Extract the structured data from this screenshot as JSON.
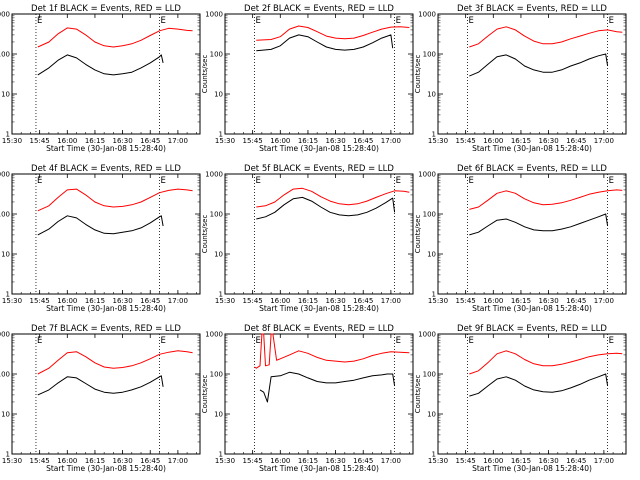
{
  "figure": {
    "xlabel": "Start Time (30-Jan-08 15:28:40)",
    "ylabel": "Counts/sec"
  },
  "axis": {
    "x_ticks": [
      {
        "minutes": 0,
        "label": "15:30"
      },
      {
        "minutes": 15,
        "label": "15:45"
      },
      {
        "minutes": 30,
        "label": "16:00"
      },
      {
        "minutes": 45,
        "label": "16:15"
      },
      {
        "minutes": 60,
        "label": "16:30"
      },
      {
        "minutes": 75,
        "label": "16:45"
      },
      {
        "minutes": 90,
        "label": "17:00"
      }
    ],
    "y_ticks": [
      {
        "value": 1,
        "label": "1"
      },
      {
        "value": 10,
        "label": "10"
      },
      {
        "value": 100,
        "label": "100"
      },
      {
        "value": 1000,
        "label": "1000"
      }
    ],
    "xlim_minutes_after_1530": [
      0,
      102
    ],
    "ylim": [
      1,
      1000
    ],
    "yscale": "log"
  },
  "colors": {
    "events": "#000000",
    "lld": "#ff0000",
    "marker": "#000000"
  },
  "chart_data": [
    {
      "type": "line",
      "title": "Det 1f BLACK = Events, RED = LLD",
      "markers": [
        {
          "label": "E",
          "minutes": 13
        },
        {
          "label": "E",
          "minutes": 80
        }
      ],
      "series": [
        {
          "name": "BLACK",
          "x": [
            14,
            20,
            25,
            30,
            35,
            40,
            45,
            50,
            55,
            60,
            65,
            70,
            75,
            80,
            81,
            82
          ],
          "y": [
            30,
            45,
            70,
            95,
            80,
            55,
            40,
            32,
            30,
            32,
            35,
            45,
            60,
            85,
            95,
            60
          ]
        },
        {
          "name": "RED",
          "x": [
            14,
            20,
            25,
            30,
            35,
            40,
            45,
            50,
            55,
            60,
            65,
            70,
            75,
            80,
            85,
            90,
            95,
            98
          ],
          "y": [
            150,
            200,
            320,
            450,
            420,
            300,
            200,
            160,
            150,
            160,
            180,
            220,
            290,
            380,
            440,
            420,
            390,
            380
          ]
        }
      ]
    },
    {
      "type": "line",
      "title": "Det 2f BLACK = Events, RED = LLD",
      "markers": [
        {
          "label": "E",
          "minutes": 16
        },
        {
          "label": "E",
          "minutes": 92
        }
      ],
      "series": [
        {
          "name": "BLACK",
          "x": [
            17,
            25,
            30,
            35,
            40,
            45,
            50,
            55,
            60,
            65,
            70,
            75,
            80,
            85,
            90,
            91
          ],
          "y": [
            120,
            130,
            160,
            250,
            300,
            270,
            200,
            150,
            130,
            125,
            130,
            150,
            190,
            250,
            300,
            140
          ]
        },
        {
          "name": "RED",
          "x": [
            17,
            25,
            30,
            35,
            40,
            45,
            50,
            55,
            60,
            65,
            70,
            75,
            80,
            85,
            90,
            95,
            100
          ],
          "y": [
            220,
            230,
            270,
            420,
            500,
            460,
            360,
            280,
            250,
            240,
            250,
            290,
            350,
            420,
            470,
            480,
            460
          ]
        }
      ]
    },
    {
      "type": "line",
      "title": "Det 3f BLACK = Events, RED = LLD",
      "markers": [
        {
          "label": "E",
          "minutes": 16
        },
        {
          "label": "E",
          "minutes": 92
        }
      ],
      "series": [
        {
          "name": "BLACK",
          "x": [
            17,
            22,
            27,
            32,
            37,
            42,
            47,
            52,
            57,
            62,
            67,
            72,
            77,
            82,
            87,
            91,
            92
          ],
          "y": [
            28,
            35,
            55,
            85,
            95,
            75,
            50,
            40,
            35,
            35,
            40,
            50,
            60,
            75,
            90,
            100,
            50
          ]
        },
        {
          "name": "RED",
          "x": [
            17,
            22,
            27,
            32,
            37,
            42,
            47,
            52,
            57,
            62,
            67,
            72,
            77,
            82,
            87,
            92,
            97,
            100
          ],
          "y": [
            150,
            180,
            280,
            420,
            480,
            400,
            280,
            210,
            180,
            180,
            200,
            240,
            280,
            330,
            380,
            400,
            360,
            350
          ]
        }
      ]
    },
    {
      "type": "line",
      "title": "Det 4f BLACK = Events, RED = LLD",
      "markers": [
        {
          "label": "E",
          "minutes": 13
        },
        {
          "label": "E",
          "minutes": 80
        }
      ],
      "series": [
        {
          "name": "BLACK",
          "x": [
            14,
            20,
            25,
            30,
            35,
            40,
            45,
            50,
            55,
            60,
            65,
            70,
            75,
            80,
            81,
            82
          ],
          "y": [
            30,
            42,
            65,
            90,
            80,
            55,
            40,
            33,
            32,
            35,
            38,
            45,
            60,
            85,
            90,
            50
          ]
        },
        {
          "name": "RED",
          "x": [
            14,
            20,
            25,
            30,
            35,
            40,
            45,
            50,
            55,
            60,
            65,
            70,
            75,
            80,
            85,
            90,
            95,
            98
          ],
          "y": [
            120,
            160,
            260,
            400,
            420,
            300,
            200,
            160,
            150,
            155,
            170,
            200,
            260,
            340,
            390,
            420,
            400,
            380
          ]
        }
      ]
    },
    {
      "type": "line",
      "title": "Det 5f BLACK = Events, RED = LLD",
      "markers": [
        {
          "label": "E",
          "minutes": 16
        },
        {
          "label": "E",
          "minutes": 92
        }
      ],
      "series": [
        {
          "name": "BLACK",
          "x": [
            17,
            22,
            27,
            32,
            37,
            42,
            47,
            52,
            57,
            62,
            67,
            72,
            77,
            82,
            87,
            91,
            92
          ],
          "y": [
            75,
            85,
            110,
            170,
            240,
            260,
            210,
            150,
            110,
            95,
            90,
            95,
            110,
            140,
            190,
            250,
            110
          ]
        },
        {
          "name": "RED",
          "x": [
            17,
            22,
            27,
            32,
            37,
            42,
            47,
            52,
            57,
            62,
            67,
            72,
            77,
            82,
            87,
            92,
            97,
            100
          ],
          "y": [
            150,
            160,
            200,
            300,
            420,
            440,
            370,
            270,
            210,
            180,
            170,
            180,
            210,
            260,
            320,
            380,
            370,
            350
          ]
        }
      ]
    },
    {
      "type": "line",
      "title": "Det 6f BLACK = Events, RED = LLD",
      "markers": [
        {
          "label": "E",
          "minutes": 16
        },
        {
          "label": "E",
          "minutes": 92
        }
      ],
      "series": [
        {
          "name": "BLACK",
          "x": [
            17,
            22,
            27,
            32,
            37,
            42,
            47,
            52,
            57,
            62,
            67,
            72,
            77,
            82,
            87,
            91,
            92
          ],
          "y": [
            30,
            35,
            50,
            70,
            75,
            62,
            48,
            40,
            38,
            38,
            42,
            48,
            58,
            70,
            85,
            100,
            50
          ]
        },
        {
          "name": "RED",
          "x": [
            17,
            22,
            27,
            32,
            37,
            42,
            47,
            52,
            57,
            62,
            67,
            72,
            77,
            82,
            87,
            92,
            97,
            100
          ],
          "y": [
            130,
            150,
            220,
            330,
            380,
            330,
            240,
            190,
            170,
            175,
            190,
            220,
            260,
            310,
            350,
            380,
            400,
            390
          ]
        }
      ]
    },
    {
      "type": "line",
      "title": "Det 7f BLACK = Events, RED = LLD",
      "markers": [
        {
          "label": "E",
          "minutes": 13
        },
        {
          "label": "E",
          "minutes": 80
        }
      ],
      "series": [
        {
          "name": "BLACK",
          "x": [
            14,
            20,
            25,
            30,
            35,
            40,
            45,
            50,
            55,
            60,
            65,
            70,
            75,
            80,
            81,
            82
          ],
          "y": [
            30,
            40,
            60,
            85,
            80,
            58,
            42,
            35,
            33,
            35,
            40,
            48,
            62,
            85,
            90,
            48
          ]
        },
        {
          "name": "RED",
          "x": [
            14,
            20,
            25,
            30,
            35,
            40,
            45,
            50,
            55,
            60,
            65,
            70,
            75,
            80,
            85,
            90,
            95,
            98
          ],
          "y": [
            100,
            140,
            220,
            340,
            360,
            270,
            190,
            150,
            140,
            145,
            160,
            190,
            240,
            310,
            350,
            380,
            360,
            340
          ]
        }
      ]
    },
    {
      "type": "line",
      "title": "Det 8f BLACK = Events, RED = LLD",
      "markers": [
        {
          "label": "E",
          "minutes": 16
        },
        {
          "label": "E",
          "minutes": 92
        }
      ],
      "series": [
        {
          "name": "BLACK",
          "x": [
            19,
            21,
            23,
            25,
            30,
            35,
            40,
            45,
            50,
            55,
            60,
            65,
            70,
            75,
            80,
            85,
            88,
            91,
            92
          ],
          "y": [
            40,
            35,
            20,
            85,
            90,
            110,
            100,
            80,
            65,
            60,
            60,
            65,
            70,
            80,
            90,
            95,
            100,
            100,
            50
          ]
        },
        {
          "name": "RED",
          "x": [
            16,
            17,
            19,
            20,
            21,
            22,
            24,
            25,
            26,
            28,
            29,
            30,
            35,
            40,
            45,
            50,
            55,
            60,
            65,
            70,
            75,
            80,
            85,
            90,
            95,
            100
          ],
          "y": [
            150,
            140,
            160,
            1000,
            1000,
            160,
            170,
            1000,
            1000,
            220,
            230,
            240,
            300,
            380,
            330,
            260,
            220,
            210,
            200,
            210,
            240,
            290,
            330,
            360,
            350,
            340
          ]
        }
      ]
    },
    {
      "type": "line",
      "title": "Det 9f BLACK = Events, RED = LLD",
      "markers": [
        {
          "label": "E",
          "minutes": 16
        },
        {
          "label": "E",
          "minutes": 92
        }
      ],
      "series": [
        {
          "name": "BLACK",
          "x": [
            17,
            22,
            27,
            32,
            37,
            42,
            47,
            52,
            57,
            62,
            67,
            72,
            77,
            82,
            87,
            91,
            92
          ],
          "y": [
            28,
            33,
            50,
            75,
            85,
            70,
            50,
            40,
            36,
            35,
            38,
            45,
            55,
            70,
            85,
            100,
            50
          ]
        },
        {
          "name": "RED",
          "x": [
            17,
            22,
            27,
            32,
            37,
            42,
            47,
            52,
            57,
            62,
            67,
            72,
            77,
            82,
            87,
            92,
            97,
            100
          ],
          "y": [
            100,
            120,
            190,
            320,
            380,
            320,
            230,
            180,
            160,
            160,
            175,
            200,
            230,
            270,
            300,
            320,
            330,
            320
          ]
        }
      ]
    }
  ]
}
